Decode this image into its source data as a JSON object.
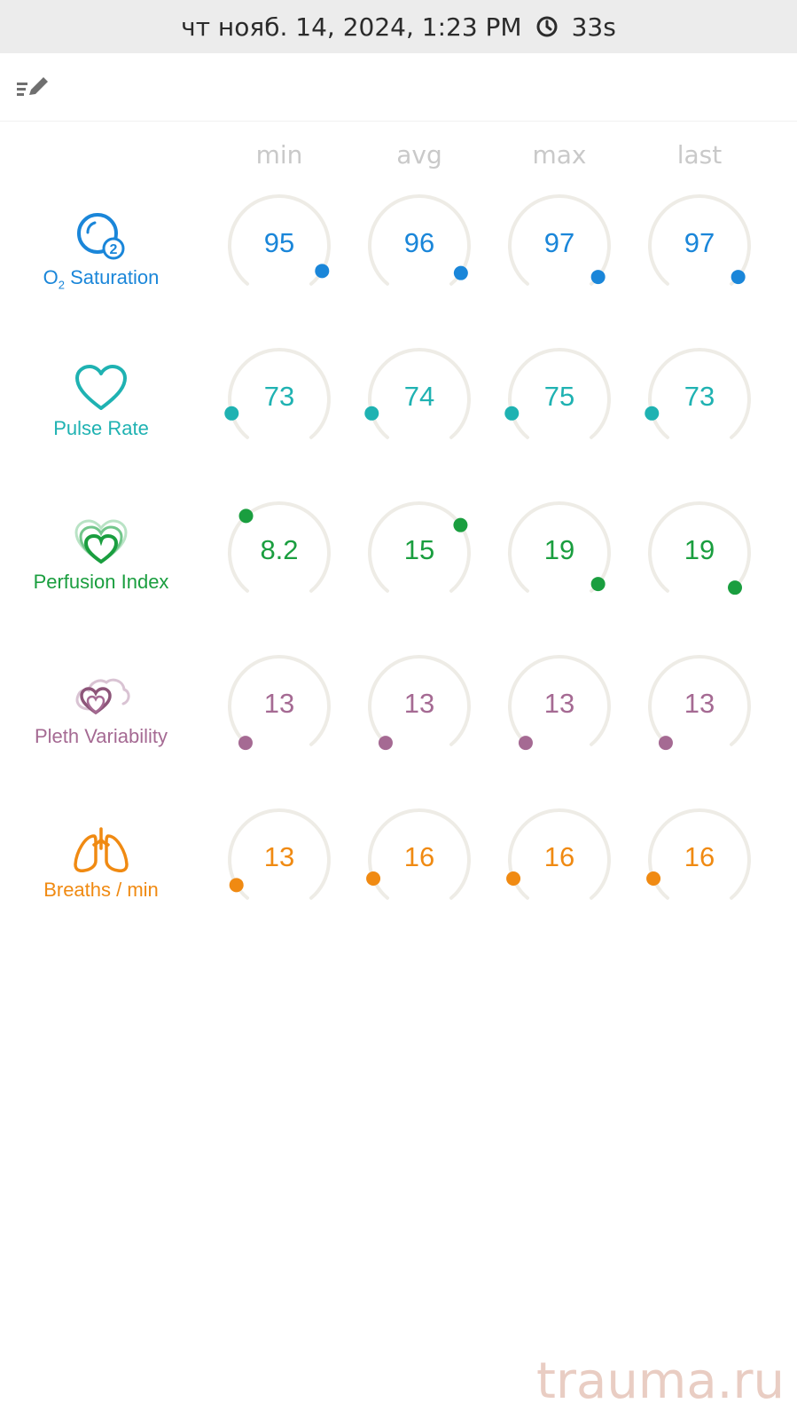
{
  "status_bar": {
    "datetime": "чт нояб. 14, 2024, 1:23 PM",
    "duration": "33s",
    "icon": "clock-icon"
  },
  "toolbar": {
    "edit_icon": "list-edit-icon"
  },
  "columns": [
    "min",
    "avg",
    "max",
    "last"
  ],
  "metrics": [
    {
      "id": "o2",
      "label_main": "O",
      "label_sub": "2",
      "label_rest": " Saturation",
      "icon": "o2-bubble-icon",
      "color": "#1a86d9",
      "values": [
        "95",
        "96",
        "97",
        "97"
      ],
      "levels": [
        0.93,
        0.94,
        0.96,
        0.96
      ]
    },
    {
      "id": "pulse",
      "label": "Pulse Rate",
      "icon": "heart-icon",
      "color": "#1fb2b2",
      "values": [
        "73",
        "74",
        "75",
        "73"
      ],
      "levels": [
        0.12,
        0.12,
        0.12,
        0.12
      ]
    },
    {
      "id": "pi",
      "label": "Perfusion Index",
      "icon": "layered-hearts-icon",
      "color": "#1a9e3f",
      "values": [
        "8.2",
        "15",
        "19",
        "19"
      ],
      "levels": [
        0.35,
        0.7,
        0.96,
        0.98
      ]
    },
    {
      "id": "pvi",
      "label": "Pleth Variability",
      "icon": "heart-cloud-icon",
      "color": "#a56a93",
      "values": [
        "13",
        "13",
        "13",
        "13"
      ],
      "levels": [
        0.01,
        0.01,
        0.01,
        0.01
      ]
    },
    {
      "id": "rr",
      "label": "Breaths / min",
      "icon": "lungs-icon",
      "color": "#f08a12",
      "values": [
        "13",
        "16",
        "16",
        "16"
      ],
      "levels": [
        0.07,
        0.1,
        0.1,
        0.1
      ]
    }
  ],
  "watermark": "trauma.ru",
  "colors": {
    "track": "#eeece6",
    "header_text": "#c9c9c9"
  }
}
